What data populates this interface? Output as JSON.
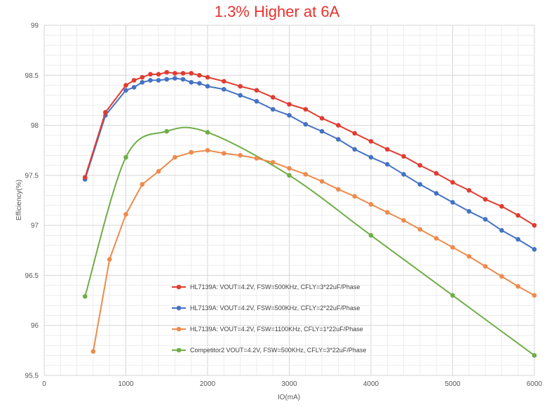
{
  "chart_data": {
    "type": "line",
    "title": "1.3% Higher at 6A",
    "xlabel": "IO(mA)",
    "ylabel": "Efficiency(%)",
    "xlim": [
      0,
      6000
    ],
    "ylim": [
      95.5,
      99
    ],
    "xticks": [
      "0",
      "1000",
      "2000",
      "3000",
      "4000",
      "5000",
      "6000"
    ],
    "yticks": [
      "95.5",
      "96",
      "96.5",
      "97",
      "97.5",
      "98",
      "98.5",
      "99"
    ],
    "grid": true,
    "legend_position": "bottom-center",
    "series": [
      {
        "name": "HL7139A: VOUT=4.2V, FSW=500KHz, CFLY=3*22uF/Phase",
        "color": "#e03c31",
        "smooth": false,
        "points": [
          [
            500,
            97.48
          ],
          [
            750,
            98.13
          ],
          [
            1000,
            98.4
          ],
          [
            1100,
            98.45
          ],
          [
            1200,
            98.48
          ],
          [
            1300,
            98.51
          ],
          [
            1400,
            98.51
          ],
          [
            1500,
            98.53
          ],
          [
            1600,
            98.52
          ],
          [
            1700,
            98.52
          ],
          [
            1800,
            98.52
          ],
          [
            1900,
            98.5
          ],
          [
            2000,
            98.48
          ],
          [
            2200,
            98.44
          ],
          [
            2400,
            98.39
          ],
          [
            2600,
            98.35
          ],
          [
            2800,
            98.28
          ],
          [
            3000,
            98.21
          ],
          [
            3200,
            98.16
          ],
          [
            3400,
            98.07
          ],
          [
            3600,
            98.0
          ],
          [
            3800,
            97.92
          ],
          [
            4000,
            97.84
          ],
          [
            4200,
            97.76
          ],
          [
            4400,
            97.69
          ],
          [
            4600,
            97.6
          ],
          [
            4800,
            97.52
          ],
          [
            5000,
            97.43
          ],
          [
            5200,
            97.35
          ],
          [
            5400,
            97.26
          ],
          [
            5600,
            97.19
          ],
          [
            5800,
            97.1
          ],
          [
            6000,
            97.0
          ]
        ]
      },
      {
        "name": "HL7139A: VOUT=4.2V, FSW=500KHz, CFLY=2*22uF/Phase",
        "color": "#4472c4",
        "smooth": false,
        "points": [
          [
            500,
            97.46
          ],
          [
            750,
            98.1
          ],
          [
            1000,
            98.35
          ],
          [
            1100,
            98.38
          ],
          [
            1200,
            98.43
          ],
          [
            1300,
            98.45
          ],
          [
            1400,
            98.45
          ],
          [
            1500,
            98.46
          ],
          [
            1600,
            98.47
          ],
          [
            1700,
            98.46
          ],
          [
            1800,
            98.43
          ],
          [
            1900,
            98.42
          ],
          [
            2000,
            98.39
          ],
          [
            2200,
            98.36
          ],
          [
            2400,
            98.3
          ],
          [
            2600,
            98.24
          ],
          [
            2800,
            98.16
          ],
          [
            3000,
            98.1
          ],
          [
            3200,
            98.01
          ],
          [
            3400,
            97.94
          ],
          [
            3600,
            97.86
          ],
          [
            3800,
            97.76
          ],
          [
            4000,
            97.68
          ],
          [
            4200,
            97.61
          ],
          [
            4400,
            97.51
          ],
          [
            4600,
            97.41
          ],
          [
            4800,
            97.32
          ],
          [
            5000,
            97.23
          ],
          [
            5200,
            97.14
          ],
          [
            5400,
            97.06
          ],
          [
            5600,
            96.95
          ],
          [
            5800,
            96.86
          ],
          [
            6000,
            96.76
          ]
        ]
      },
      {
        "name": "HL7139A: VOUT=4.2V, FSW=1100KHz, CFLY=1*22uF/Phase",
        "color": "#ed8b4c",
        "smooth": false,
        "points": [
          [
            600,
            95.74
          ],
          [
            800,
            96.66
          ],
          [
            1000,
            97.11
          ],
          [
            1200,
            97.41
          ],
          [
            1400,
            97.54
          ],
          [
            1600,
            97.68
          ],
          [
            1800,
            97.73
          ],
          [
            2000,
            97.75
          ],
          [
            2200,
            97.72
          ],
          [
            2400,
            97.7
          ],
          [
            2600,
            97.67
          ],
          [
            2800,
            97.63
          ],
          [
            3000,
            97.57
          ],
          [
            3200,
            97.51
          ],
          [
            3400,
            97.44
          ],
          [
            3600,
            97.36
          ],
          [
            3800,
            97.29
          ],
          [
            4000,
            97.21
          ],
          [
            4200,
            97.13
          ],
          [
            4400,
            97.05
          ],
          [
            4600,
            96.96
          ],
          [
            4800,
            96.87
          ],
          [
            5000,
            96.78
          ],
          [
            5200,
            96.69
          ],
          [
            5400,
            96.59
          ],
          [
            5600,
            96.49
          ],
          [
            5800,
            96.39
          ],
          [
            6000,
            96.3
          ]
        ]
      },
      {
        "name": "Competitor2 VOUT=4.2V, FSW=500KHz, CFLY=3*22uF/Phase",
        "color": "#70ad47",
        "smooth": true,
        "points": [
          [
            500,
            96.29
          ],
          [
            1000,
            97.68
          ],
          [
            1500,
            97.94
          ],
          [
            2000,
            97.93
          ],
          [
            3000,
            97.5
          ],
          [
            4000,
            96.9
          ],
          [
            5000,
            96.3
          ],
          [
            6000,
            95.7
          ]
        ]
      }
    ]
  }
}
